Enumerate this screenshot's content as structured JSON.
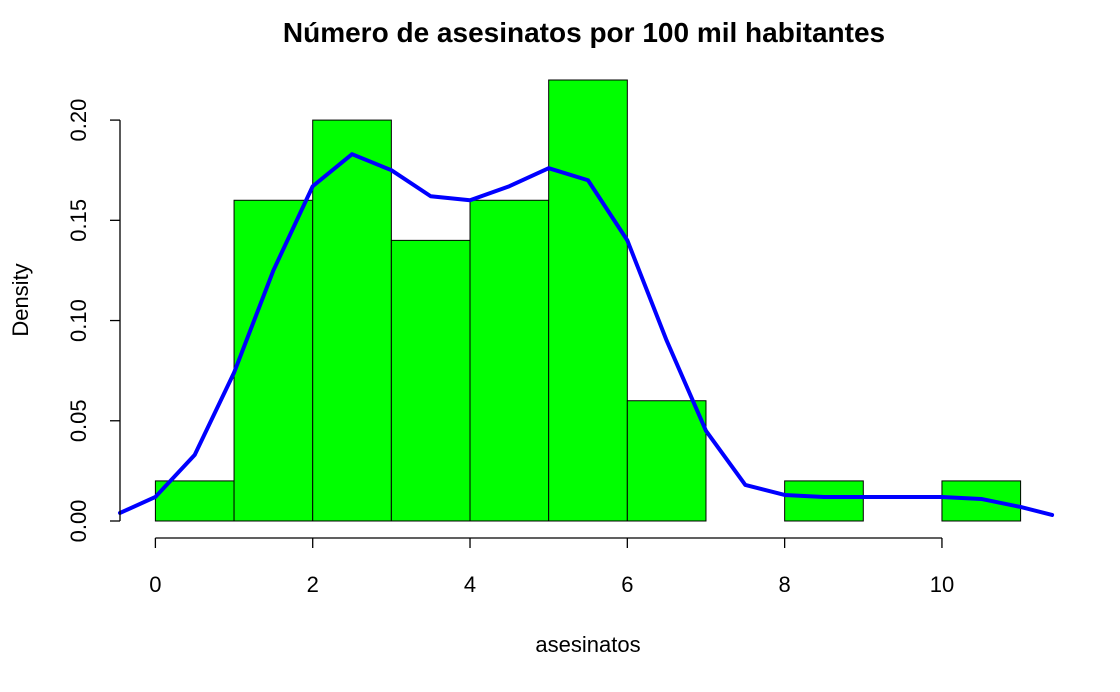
{
  "chart_data": {
    "type": "bar",
    "subtype": "histogram-with-density",
    "title": "Número de asesinatos por 100 mil habitantes",
    "xlabel": "asesinatos",
    "ylabel": "Density",
    "xlim": [
      -0.45,
      11.45
    ],
    "ylim": [
      0,
      0.22
    ],
    "x_ticks": [
      0,
      2,
      4,
      6,
      8,
      10
    ],
    "x_tick_labels": [
      "0",
      "2",
      "4",
      "6",
      "8",
      "10"
    ],
    "y_ticks": [
      0,
      0.05,
      0.1,
      0.15,
      0.2
    ],
    "y_tick_labels": [
      "0.00",
      "0.05",
      "0.10",
      "0.15",
      "0.20"
    ],
    "bins": [
      {
        "from": 0,
        "to": 1,
        "density": 0.02
      },
      {
        "from": 1,
        "to": 2,
        "density": 0.16
      },
      {
        "from": 2,
        "to": 3,
        "density": 0.2
      },
      {
        "from": 3,
        "to": 4,
        "density": 0.14
      },
      {
        "from": 4,
        "to": 5,
        "density": 0.16
      },
      {
        "from": 5,
        "to": 6,
        "density": 0.22
      },
      {
        "from": 6,
        "to": 7,
        "density": 0.06
      },
      {
        "from": 7,
        "to": 8,
        "density": 0.0
      },
      {
        "from": 8,
        "to": 9,
        "density": 0.02
      },
      {
        "from": 9,
        "to": 10,
        "density": 0.0
      },
      {
        "from": 10,
        "to": 11,
        "density": 0.02
      }
    ],
    "density_curve": {
      "x": [
        -0.45,
        0,
        0.5,
        1,
        1.5,
        2,
        2.5,
        3,
        3.5,
        4,
        4.5,
        5,
        5.5,
        6,
        6.5,
        7,
        7.5,
        8,
        8.5,
        9,
        9.5,
        10,
        10.5,
        11,
        11.4
      ],
      "y": [
        0.004,
        0.012,
        0.033,
        0.074,
        0.125,
        0.167,
        0.183,
        0.175,
        0.162,
        0.16,
        0.167,
        0.176,
        0.17,
        0.14,
        0.09,
        0.045,
        0.018,
        0.013,
        0.012,
        0.012,
        0.012,
        0.012,
        0.011,
        0.007,
        0.003
      ]
    },
    "colors": {
      "bar_fill": "#00ff00",
      "bar_stroke": "#000000",
      "density_line": "#0000ff"
    },
    "grid": false,
    "legend": "none"
  }
}
